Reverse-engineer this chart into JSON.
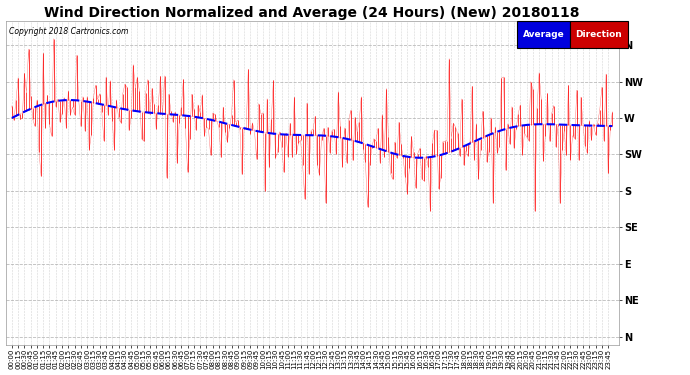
{
  "title": "Wind Direction Normalized and Average (24 Hours) (New) 20180118",
  "copyright": "Copyright 2018 Cartronics.com",
  "background_color": "#ffffff",
  "plot_bg_color": "#ffffff",
  "grid_color": "#aaaaaa",
  "direction_labels": [
    "N",
    "NW",
    "W",
    "SW",
    "S",
    "SE",
    "E",
    "NE",
    "N"
  ],
  "ytick_positions": [
    360,
    315,
    270,
    225,
    180,
    135,
    90,
    45,
    0
  ],
  "ylim": [
    -10,
    390
  ],
  "red_color": "#ff0000",
  "blue_color": "#0000ff",
  "legend_avg_color": "#0000dd",
  "legend_dir_color": "#cc0000",
  "title_fontsize": 10,
  "tick_fontsize": 7,
  "num_points": 288,
  "seed": 42
}
